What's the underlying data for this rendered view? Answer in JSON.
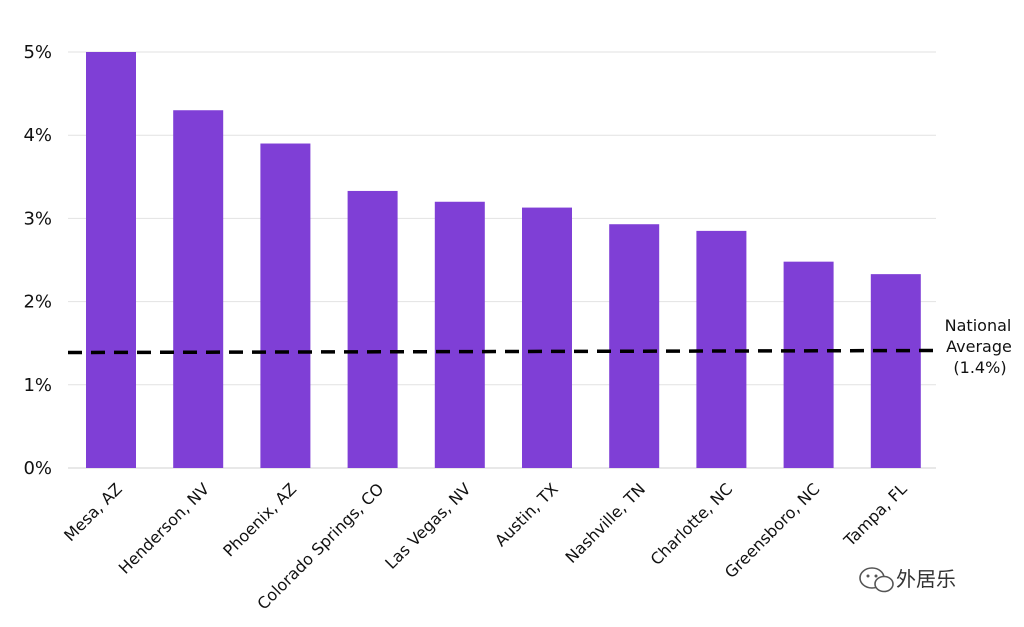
{
  "chart_data": {
    "type": "bar",
    "categories": [
      "Mesa, AZ",
      "Henderson, NV",
      "Phoenix, AZ",
      "Colorado Springs, CO",
      "Las Vegas, NV",
      "Austin, TX",
      "Nashville, TN",
      "Charlotte, NC",
      "Greensboro, NC",
      "Tampa, FL"
    ],
    "values": [
      5.0,
      4.3,
      3.9,
      3.33,
      3.2,
      3.13,
      2.93,
      2.85,
      2.48,
      2.33
    ],
    "title": "",
    "xlabel": "",
    "ylabel": "",
    "ylim": [
      0,
      5
    ],
    "yticks": [
      {
        "value": 0,
        "label": "0%"
      },
      {
        "value": 1,
        "label": "1%"
      },
      {
        "value": 2,
        "label": "2%"
      },
      {
        "value": 3,
        "label": "3%"
      },
      {
        "value": 4,
        "label": "4%"
      },
      {
        "value": 5,
        "label": "5%"
      }
    ],
    "grid": true,
    "bar_color": "#7f3fd6",
    "reference_line": {
      "value": 1.4,
      "style": "dashed",
      "color": "#000000",
      "label_lines": [
        "National",
        "Average",
        "(1.4%)"
      ]
    }
  },
  "watermark": {
    "text": "外居乐",
    "icon": "wechat-icon"
  }
}
